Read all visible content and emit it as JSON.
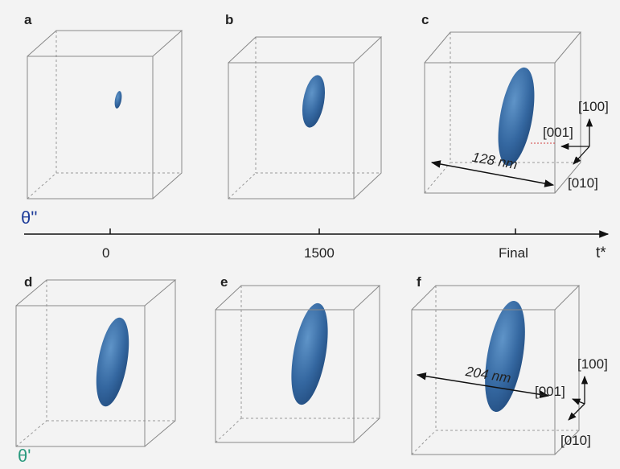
{
  "panels": [
    {
      "label": "a"
    },
    {
      "label": "b"
    },
    {
      "label": "c"
    },
    {
      "label": "d"
    },
    {
      "label": "e"
    },
    {
      "label": "f"
    }
  ],
  "phases": {
    "top": "θ''",
    "bottom": "θ'"
  },
  "timeline": {
    "ticks": [
      "0",
      "1500",
      "Final"
    ],
    "axis_label": "t*"
  },
  "scale_bars": [
    "128 nm",
    "204 nm"
  ],
  "directions": [
    [
      "[100]",
      "[001]",
      "[010]"
    ],
    [
      "[100]",
      "[001]",
      "[010]"
    ]
  ]
}
